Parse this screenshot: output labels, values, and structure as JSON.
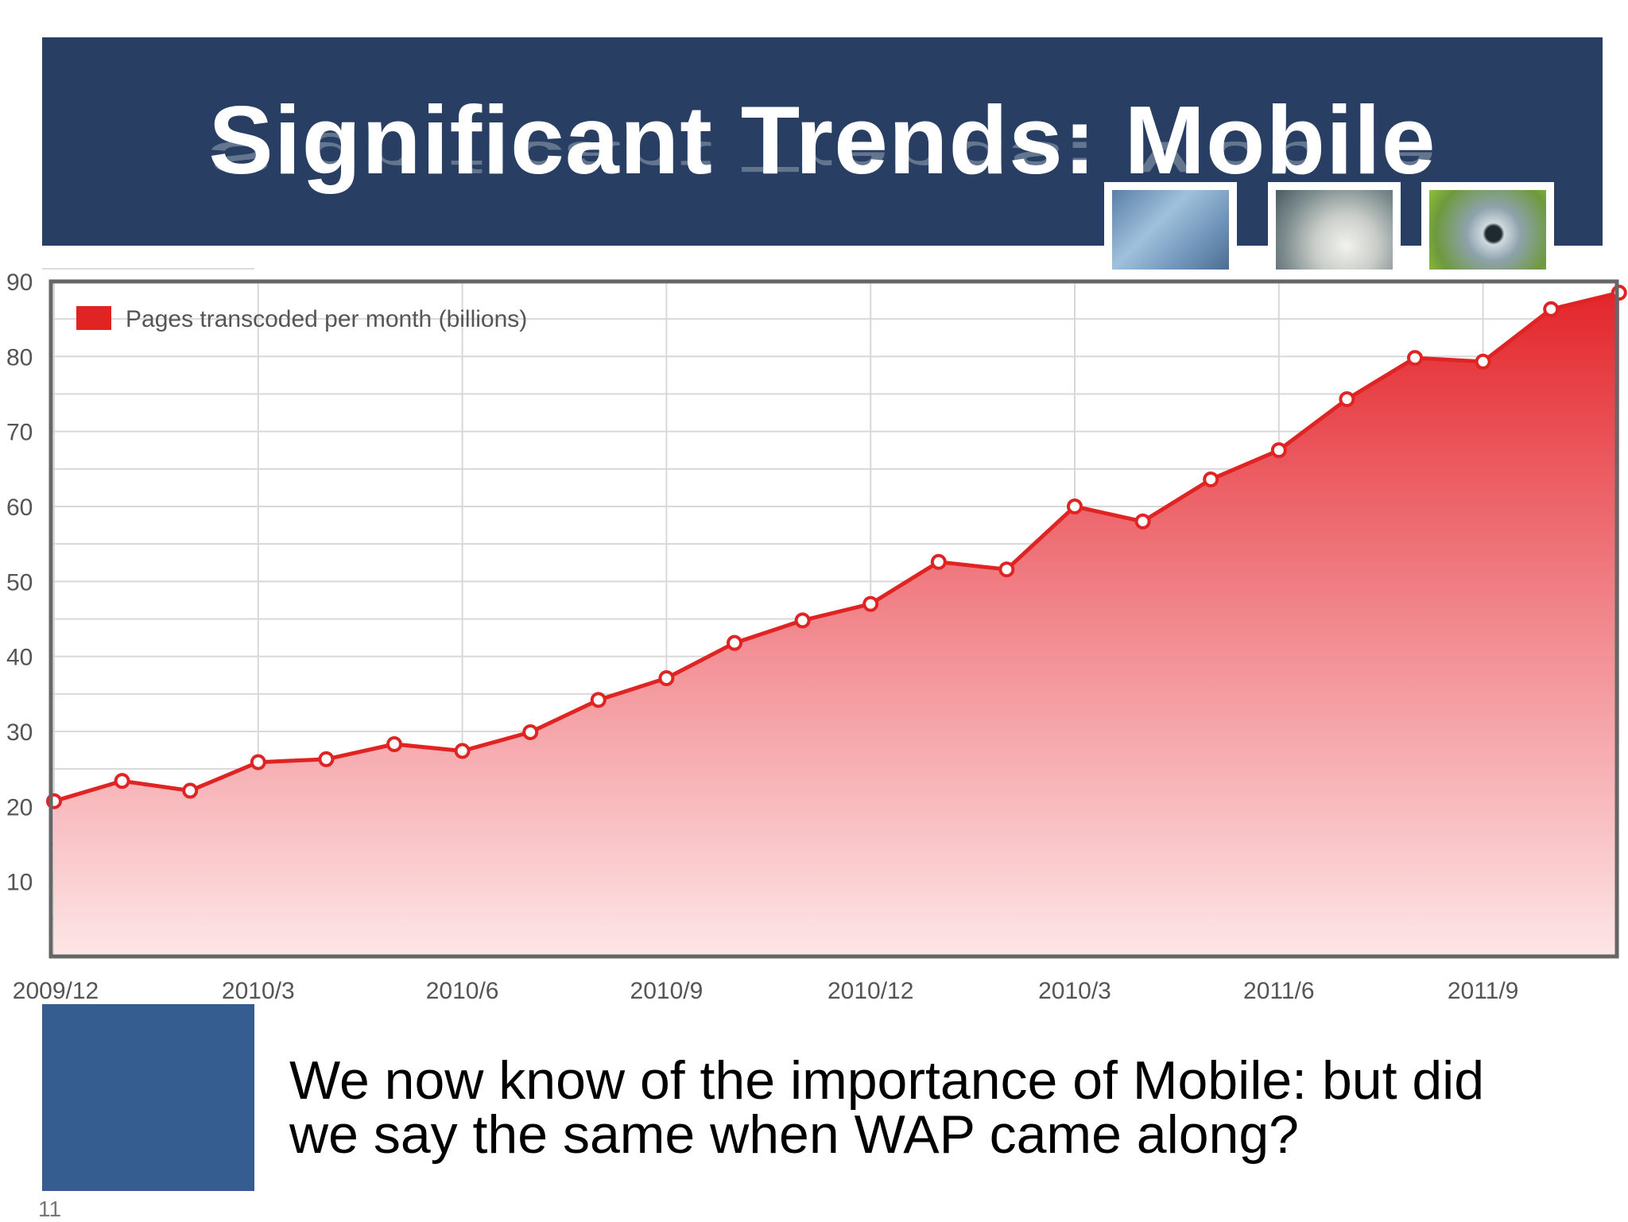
{
  "slide": {
    "title": "Significant Trends: Mobile",
    "body_text": "We now know of the importance of Mobile: but did we say the same when WAP came along?",
    "page_number": "11"
  },
  "thumbnails": [
    {
      "name": "keyboard-photo"
    },
    {
      "name": "device-photo"
    },
    {
      "name": "camera-lens-photo"
    }
  ],
  "colors": {
    "banner": "#283f63",
    "footer_box": "#365d8f",
    "series": "#e02424"
  },
  "chart_data": {
    "type": "area",
    "title": "",
    "xlabel": "",
    "ylabel": "",
    "ylim": [
      0,
      90
    ],
    "yticks": [
      10,
      20,
      30,
      40,
      50,
      60,
      70,
      80,
      90
    ],
    "x_tick_labels": [
      "2009/12",
      "2010/3",
      "2010/6",
      "2010/9",
      "2010/12",
      "2010/3",
      "2011/6",
      "2011/9"
    ],
    "x_tick_positions": [
      0,
      3,
      6,
      9,
      12,
      15,
      18,
      21
    ],
    "grid": true,
    "legend_position": "top-left",
    "series": [
      {
        "name": "Pages transcoded per month (billions)",
        "values": [
          20.7,
          23.4,
          22.1,
          25.9,
          26.3,
          28.3,
          27.4,
          29.9,
          34.2,
          37.1,
          41.8,
          44.8,
          47.0,
          52.6,
          51.6,
          60.0,
          58.0,
          63.6,
          67.5,
          74.3,
          79.8,
          79.3,
          86.3,
          88.5
        ]
      }
    ]
  }
}
